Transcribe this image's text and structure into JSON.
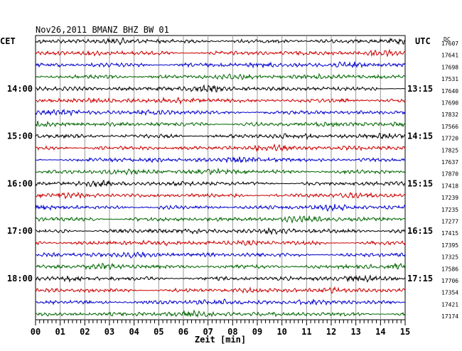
{
  "chart_data": {
    "type": "line",
    "title": "Nov26,2011   BMANZ BHZ BW 01",
    "left_axis_label": "CET",
    "right_axis_label": "UTC",
    "dc_header": "DC",
    "xlabel": "Zeit [min]",
    "xlim": [
      0,
      15
    ],
    "x_ticks": [
      "00",
      "01",
      "02",
      "03",
      "04",
      "05",
      "06",
      "07",
      "08",
      "09",
      "10",
      "11",
      "12",
      "13",
      "14",
      "15"
    ],
    "grid": true,
    "trace_colors": [
      "#000000",
      "#cc0000",
      "#0000cc",
      "#006600"
    ],
    "cet_labels": [
      {
        "row": 4,
        "text": "14:00"
      },
      {
        "row": 8,
        "text": "15:00"
      },
      {
        "row": 12,
        "text": "16:00"
      },
      {
        "row": 16,
        "text": "17:00"
      },
      {
        "row": 20,
        "text": "18:00"
      }
    ],
    "utc_labels": [
      {
        "row": 4,
        "text": "13:15"
      },
      {
        "row": 8,
        "text": "14:15"
      },
      {
        "row": 12,
        "text": "15:15"
      },
      {
        "row": 16,
        "text": "16:15"
      },
      {
        "row": 20,
        "text": "17:15"
      }
    ],
    "dc_offsets": [
      17607,
      17641,
      17698,
      17531,
      17640,
      17690,
      17832,
      17566,
      17720,
      17825,
      17637,
      17870,
      17418,
      17239,
      17235,
      17277,
      17415,
      17395,
      17325,
      17586,
      17706,
      17354,
      17421,
      17174
    ]
  }
}
